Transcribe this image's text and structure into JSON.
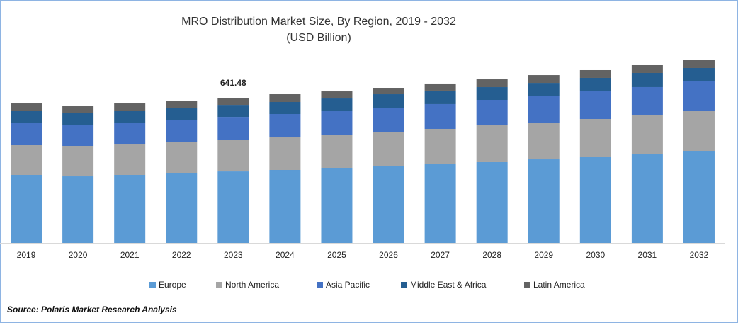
{
  "chart_data": {
    "type": "stacked-bar",
    "title": "MRO Distribution Market Size, By Region, 2019 - 2032",
    "subtitle": "(USD Billion)",
    "source": "Source: Polaris Market Research Analysis",
    "categories": [
      "2019",
      "2020",
      "2021",
      "2022",
      "2023",
      "2024",
      "2025",
      "2026",
      "2027",
      "2028",
      "2029",
      "2030",
      "2031",
      "2032"
    ],
    "series": [
      {
        "name": "Europe",
        "color": "#5b9bd5",
        "values": [
          300.5,
          294.2,
          300.5,
          309.9,
          316,
          322.4,
          331.8,
          341.2,
          350.6,
          360.0,
          369.3,
          381.9,
          394.4,
          406.9
        ]
      },
      {
        "name": "North America",
        "color": "#a5a5a5",
        "values": [
          134.6,
          134.6,
          137.7,
          137.7,
          141,
          144.0,
          147.1,
          150.2,
          153.4,
          159.6,
          162.8,
          165.9,
          172.2,
          175.3
        ]
      },
      {
        "name": "Asia Pacific",
        "color": "#4472c4",
        "values": [
          93.9,
          93.9,
          93.9,
          97.0,
          100,
          103.3,
          103.3,
          106.4,
          109.6,
          112.7,
          118.9,
          122.1,
          122.1,
          131.5
        ]
      },
      {
        "name": "Middle East & Africa",
        "color": "#255e91",
        "values": [
          56.3,
          53.2,
          53.2,
          53.2,
          53.2,
          53.2,
          56.3,
          59.5,
          59.5,
          56.3,
          56.3,
          59.5,
          62.6,
          59.5
        ]
      },
      {
        "name": "Latin America",
        "color": "#636363",
        "values": [
          31.3,
          28.2,
          31.3,
          31.3,
          31.28,
          34.4,
          31.3,
          28.2,
          31.3,
          34.4,
          34.4,
          34.4,
          34.4,
          34.4
        ]
      }
    ],
    "totals": [
      null,
      null,
      null,
      null,
      641.48,
      null,
      null,
      null,
      null,
      null,
      null,
      null,
      null,
      null
    ]
  }
}
